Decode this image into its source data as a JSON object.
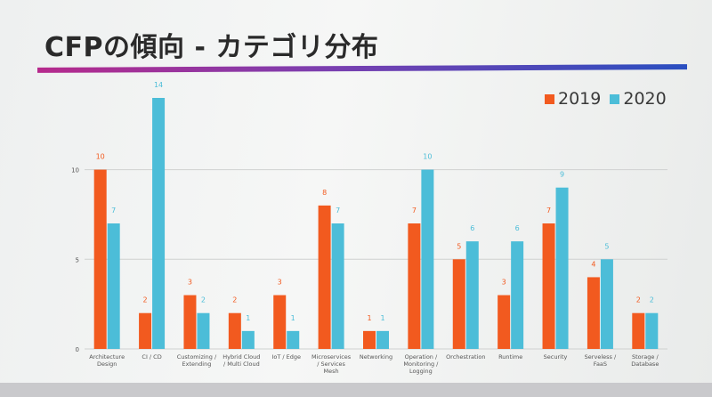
{
  "title": "CFPの傾向 - カテゴリ分布",
  "colors": {
    "s2019": "#f25a1f",
    "s2020": "#4cbdd8",
    "grid": "#cfd1d0",
    "label": "#555555"
  },
  "chart_data": {
    "type": "bar",
    "title": "CFPの傾向 - カテゴリ分布",
    "xlabel": "",
    "ylabel": "",
    "ylim": [
      0,
      14
    ],
    "yticks": [
      0,
      5,
      10
    ],
    "grid": true,
    "legend": "top-right",
    "categories": [
      "Architecture Design",
      "CI / CD",
      "Customizing / Extending",
      "Hybrid Cloud / Multi Cloud",
      "IoT / Edge",
      "Microservices / Services Mesh",
      "Networking",
      "Operation / Monitoring / Logging",
      "Orchestration",
      "Runtime",
      "Security",
      "Serveless / FaaS",
      "Storage / Database"
    ],
    "category_lines": [
      [
        "Architecture",
        "Design"
      ],
      [
        "CI / CD"
      ],
      [
        "Customizing /",
        "Extending"
      ],
      [
        "Hybrid Cloud",
        "/ Multi Cloud"
      ],
      [
        "IoT / Edge"
      ],
      [
        "Microservices",
        "/ Services",
        "Mesh"
      ],
      [
        "Networking"
      ],
      [
        "Operation /",
        "Monitoring /",
        "Logging"
      ],
      [
        "Orchestration"
      ],
      [
        "Runtime"
      ],
      [
        "Security"
      ],
      [
        "Serveless /",
        "FaaS"
      ],
      [
        "Storage /",
        "Database"
      ]
    ],
    "series": [
      {
        "name": "2019",
        "values": [
          10,
          2,
          3,
          2,
          3,
          8,
          1,
          7,
          5,
          3,
          7,
          4,
          2
        ]
      },
      {
        "name": "2020",
        "values": [
          7,
          14,
          2,
          1,
          1,
          7,
          1,
          10,
          6,
          6,
          9,
          5,
          2
        ]
      }
    ]
  }
}
